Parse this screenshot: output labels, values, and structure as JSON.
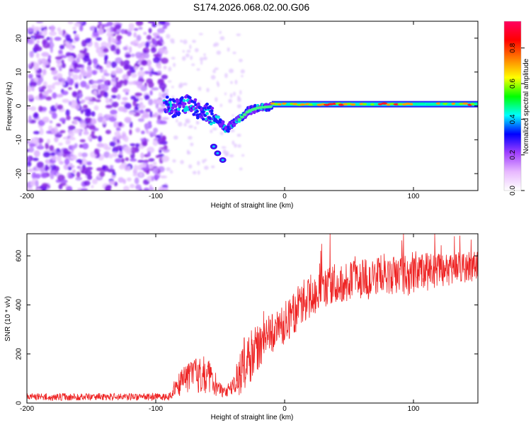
{
  "chart_data": [
    {
      "type": "heatmap",
      "title": "S174.2026.068.02.00.G06",
      "xlabel": "Height of straight line (km)",
      "ylabel": "Frequency (Hz)",
      "xlim": [
        -200,
        150
      ],
      "ylim": [
        -25,
        25
      ],
      "xticks": [
        -200,
        -100,
        0,
        100
      ],
      "yticks": [
        -20,
        -10,
        0,
        10,
        20
      ],
      "colorbar": {
        "label": "Normalized spectral amplitude",
        "range": [
          0,
          0.95
        ],
        "ticks": [
          "0.0",
          "0.2",
          "0.4",
          "0.6",
          "0.8"
        ],
        "colors": [
          "#ffffff",
          "#e8b8ff",
          "#a040ff",
          "#0000ff",
          "#00ffff",
          "#00ff00",
          "#ffff00",
          "#ff8000",
          "#ff0000",
          "#ff0060"
        ]
      },
      "features": {
        "noise_region_x_km": [
          -200,
          -92
        ],
        "noise_frequency_hz": [
          -25,
          25
        ],
        "transition_points": [
          {
            "x": -92,
            "y": 0.5
          },
          {
            "x": -85,
            "y": -1
          },
          {
            "x": -75,
            "y": 1
          },
          {
            "x": -68,
            "y": -1
          },
          {
            "x": -60,
            "y": -2
          },
          {
            "x": -52,
            "y": -4
          },
          {
            "x": -45,
            "y": -7
          },
          {
            "x": -40,
            "y": -5
          },
          {
            "x": -35,
            "y": -4
          },
          {
            "x": -28,
            "y": -1.5
          },
          {
            "x": -20,
            "y": -0.5
          },
          {
            "x": -10,
            "y": -0.2
          }
        ],
        "branch_points": [
          {
            "x": -55,
            "y": -12
          },
          {
            "x": -52,
            "y": -14
          },
          {
            "x": -48,
            "y": -16
          }
        ],
        "steady_line": {
          "x_from_km": -10,
          "x_to_km": 150,
          "freq_hz": 0.5
        }
      }
    },
    {
      "type": "line",
      "xlabel": "Height of straight line (km)",
      "ylabel": "SNR (10 * v/v)",
      "xlim": [
        -200,
        150
      ],
      "ylim": [
        0,
        690
      ],
      "xticks": [
        -200,
        -100,
        0,
        100
      ],
      "yticks": [
        0,
        200,
        400,
        600
      ],
      "series": [
        {
          "name": "SNR",
          "color": "#ee2222",
          "envelope_x": [
            -200,
            -90,
            -85,
            -78,
            -70,
            -62,
            -55,
            -48,
            -40,
            -32,
            -25,
            -15,
            -5,
            5,
            15,
            25,
            40,
            60,
            80,
            100,
            120,
            150
          ],
          "envelope_mean": [
            25,
            25,
            60,
            90,
            110,
            120,
            90,
            40,
            60,
            150,
            200,
            260,
            300,
            350,
            420,
            460,
            490,
            510,
            520,
            530,
            540,
            560
          ],
          "envelope_spread": [
            15,
            15,
            40,
            60,
            70,
            80,
            60,
            25,
            40,
            120,
            100,
            90,
            80,
            90,
            90,
            90,
            80,
            90,
            90,
            90,
            70,
            60
          ]
        }
      ]
    }
  ]
}
